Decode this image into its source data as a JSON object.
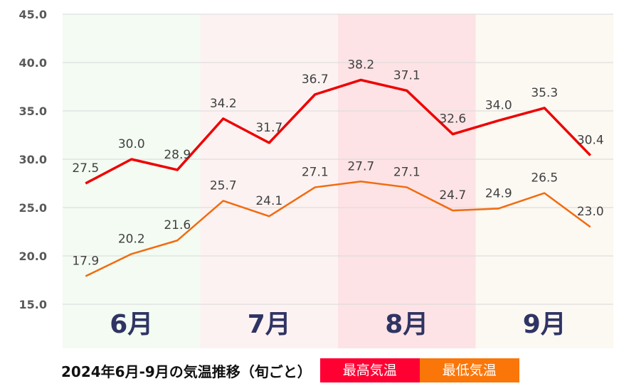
{
  "chart_data": {
    "type": "line",
    "title": "2024年6月-9月の気温推移（旬ごと）",
    "ylim": [
      15,
      45
    ],
    "y_ticks": [
      "15.0",
      "20.0",
      "25.0",
      "30.0",
      "35.0",
      "40.0",
      "45.0"
    ],
    "grid": true,
    "month_bands": [
      {
        "label": "6月",
        "color": "#f3fbf2"
      },
      {
        "label": "7月",
        "color": "#fdf2f2"
      },
      {
        "label": "8月",
        "color": "#fde3e5"
      },
      {
        "label": "9月",
        "color": "#fcf8f2"
      }
    ],
    "series": [
      {
        "name": "最高気温",
        "color": "#ee0000",
        "values": [
          27.5,
          30.0,
          28.9,
          34.2,
          31.7,
          36.7,
          38.2,
          37.1,
          32.6,
          34.0,
          35.3,
          30.4
        ],
        "labels": [
          "27.5",
          "30.0",
          "28.9",
          "34.2",
          "31.7",
          "36.7",
          "38.2",
          "37.1",
          "32.6",
          "34.0",
          "35.3",
          "30.4"
        ]
      },
      {
        "name": "最低気温",
        "color": "#f26b0f",
        "values": [
          17.9,
          20.2,
          21.6,
          25.7,
          24.1,
          27.1,
          27.7,
          27.1,
          24.7,
          24.9,
          26.5,
          23.0
        ],
        "labels": [
          "17.9",
          "20.2",
          "21.6",
          "25.7",
          "24.1",
          "27.1",
          "27.7",
          "27.1",
          "24.7",
          "24.9",
          "26.5",
          "23.0"
        ]
      }
    ]
  },
  "legend": [
    {
      "label": "最高気温",
      "color": "#ff0033"
    },
    {
      "label": "最低気温",
      "color": "#fb7609"
    }
  ]
}
